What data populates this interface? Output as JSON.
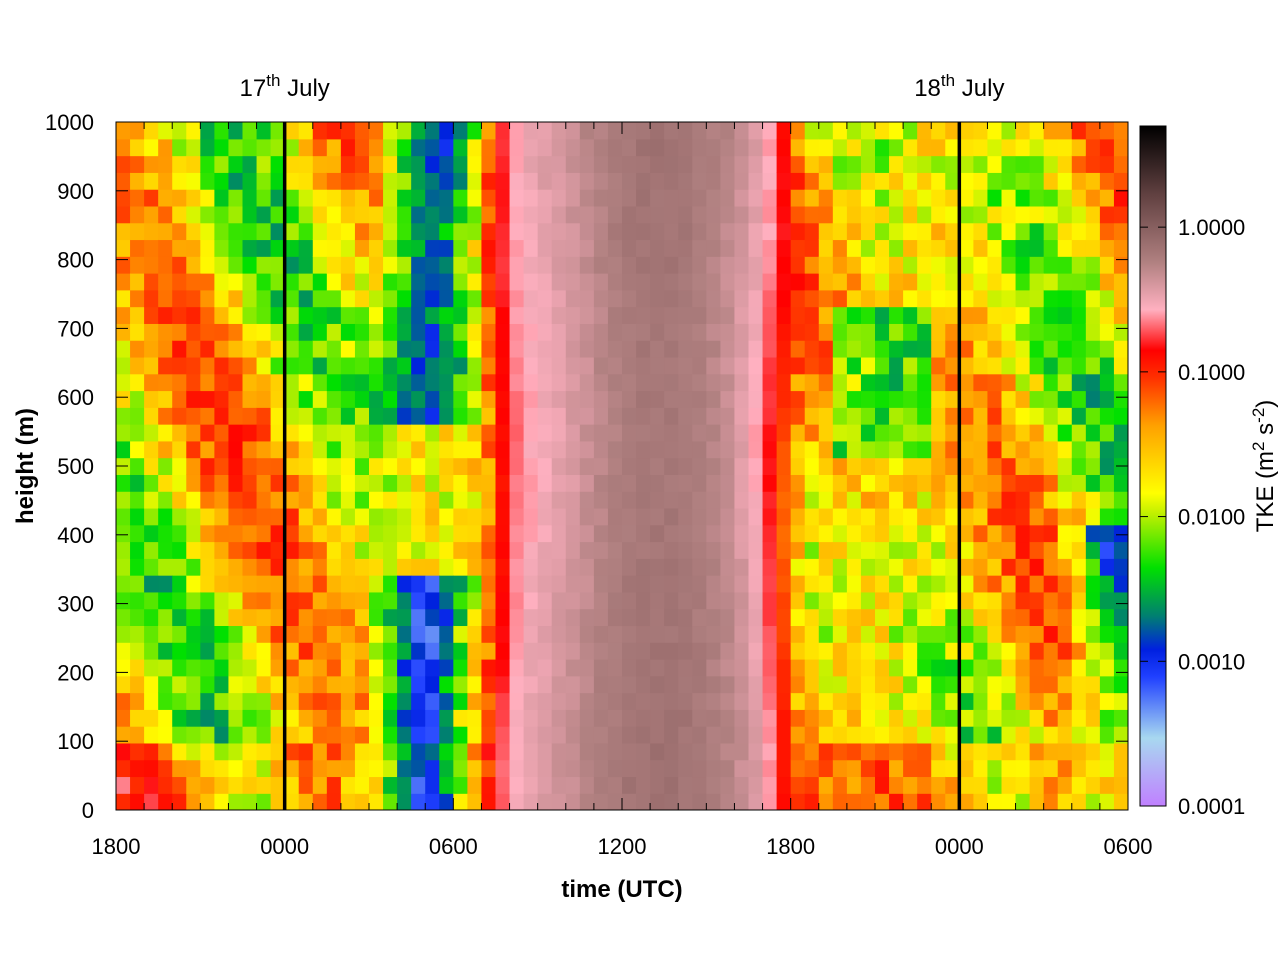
{
  "chart_data": {
    "type": "heatmap",
    "xlabel": "time (UTC)",
    "ylabel": "height (m)",
    "colorbar_title": "TKE (m2 s-2)",
    "colorbar_title_parts": [
      "TKE (m",
      "2",
      " s",
      "-2",
      ")"
    ],
    "x_hours": [
      -6,
      30
    ],
    "x_ticks": [
      {
        "hour": -6,
        "label": "1800"
      },
      {
        "hour": 0,
        "label": "0000"
      },
      {
        "hour": 6,
        "label": "0600"
      },
      {
        "hour": 12,
        "label": "1200"
      },
      {
        "hour": 18,
        "label": "1800"
      },
      {
        "hour": 24,
        "label": "0000"
      },
      {
        "hour": 30,
        "label": "0600"
      }
    ],
    "ylim": [
      0,
      1000
    ],
    "y_ticks": [
      0,
      100,
      200,
      300,
      400,
      500,
      600,
      700,
      800,
      900,
      1000
    ],
    "color_scale": "log",
    "colorbar_range": [
      0.0001,
      5
    ],
    "colorbar_ticks": [
      {
        "value": 0.0001,
        "label": "0.0001"
      },
      {
        "value": 0.001,
        "label": "0.0010"
      },
      {
        "value": 0.01,
        "label": "0.0100"
      },
      {
        "value": 0.1,
        "label": "0.1000"
      },
      {
        "value": 1,
        "label": "1.0000"
      }
    ],
    "day_markers": [
      {
        "hour": 0,
        "label": "17",
        "suffix": "th",
        "month": " July"
      },
      {
        "hour": 24,
        "label": "18",
        "suffix": "th",
        "month": " July"
      }
    ],
    "grid": false
  }
}
